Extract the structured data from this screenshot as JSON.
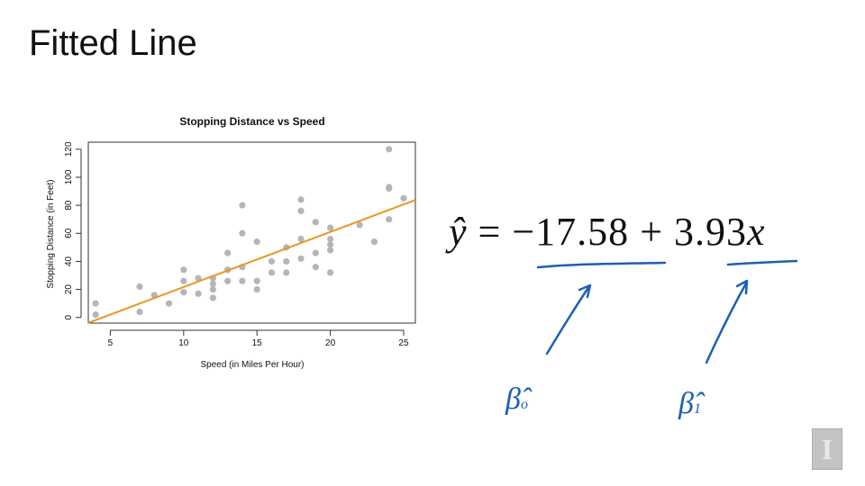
{
  "slide": {
    "title": "Fitted Line"
  },
  "equation": {
    "lhs": "ŷ",
    "equals": "=",
    "intercept": "−17.58",
    "plus": "+",
    "slope": "3.93",
    "var": "x"
  },
  "annotations": {
    "beta0": {
      "symbol": "β̂",
      "subscript": "o"
    },
    "beta1": {
      "symbol": "β̂",
      "subscript": "1"
    }
  },
  "logo": {
    "text": "I"
  },
  "colors": {
    "points": "#b5b5b5",
    "fit_line": "#e39a1c",
    "ink": "#1d5fb5",
    "axis": "#333333"
  },
  "chart_data": {
    "type": "scatter",
    "title": "Stopping Distance vs Speed",
    "xlabel": "Speed (in Miles Per Hour)",
    "ylabel": "Stopping Distance (in Feet)",
    "xlim": [
      3.5,
      25.8
    ],
    "ylim": [
      -4,
      125
    ],
    "xticks": [
      5,
      10,
      15,
      20,
      25
    ],
    "yticks": [
      0,
      20,
      40,
      60,
      80,
      100,
      120
    ],
    "grid": false,
    "points": [
      [
        4,
        2
      ],
      [
        4,
        10
      ],
      [
        7,
        4
      ],
      [
        7,
        22
      ],
      [
        8,
        16
      ],
      [
        9,
        10
      ],
      [
        10,
        18
      ],
      [
        10,
        26
      ],
      [
        10,
        34
      ],
      [
        11,
        17
      ],
      [
        11,
        28
      ],
      [
        12,
        14
      ],
      [
        12,
        20
      ],
      [
        12,
        24
      ],
      [
        12,
        28
      ],
      [
        13,
        26
      ],
      [
        13,
        34
      ],
      [
        13,
        34
      ],
      [
        13,
        46
      ],
      [
        14,
        26
      ],
      [
        14,
        36
      ],
      [
        14,
        60
      ],
      [
        14,
        80
      ],
      [
        15,
        20
      ],
      [
        15,
        26
      ],
      [
        15,
        54
      ],
      [
        16,
        32
      ],
      [
        16,
        40
      ],
      [
        17,
        32
      ],
      [
        17,
        40
      ],
      [
        17,
        50
      ],
      [
        18,
        42
      ],
      [
        18,
        56
      ],
      [
        18,
        76
      ],
      [
        18,
        84
      ],
      [
        19,
        36
      ],
      [
        19,
        46
      ],
      [
        19,
        68
      ],
      [
        20,
        32
      ],
      [
        20,
        48
      ],
      [
        20,
        52
      ],
      [
        20,
        56
      ],
      [
        20,
        64
      ],
      [
        22,
        66
      ],
      [
        23,
        54
      ],
      [
        24,
        70
      ],
      [
        24,
        92
      ],
      [
        24,
        93
      ],
      [
        24,
        120
      ],
      [
        25,
        85
      ]
    ],
    "fit": {
      "intercept": -17.58,
      "slope": 3.93
    }
  }
}
